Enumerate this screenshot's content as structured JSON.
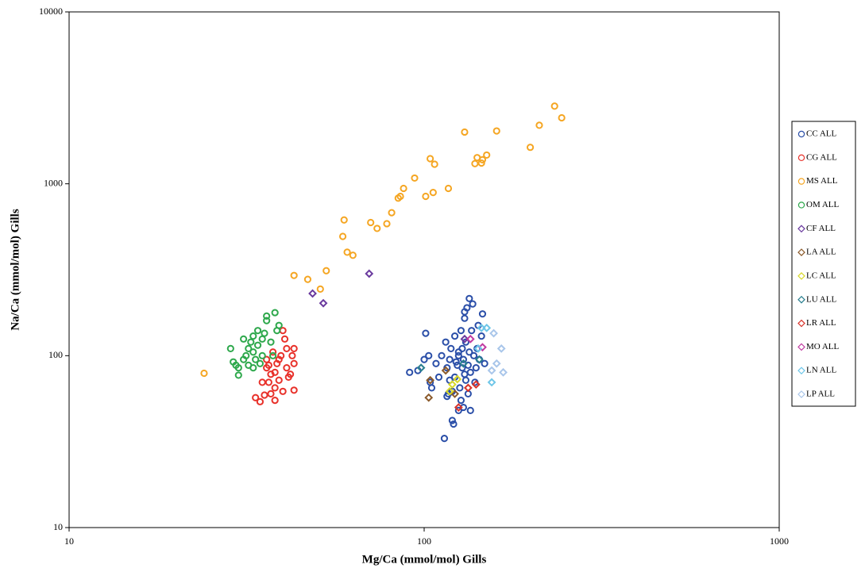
{
  "chart_data": {
    "type": "scatter",
    "xlabel": "Mg/Ca (mmol/mol) Gills",
    "ylabel": "Na/Ca (mmol/mol) Gills",
    "xscale": "log",
    "yscale": "log",
    "xlim": [
      10,
      1000
    ],
    "ylim": [
      10,
      10000
    ],
    "xticks": [
      10,
      100,
      1000
    ],
    "yticks": [
      10,
      100,
      1000,
      10000
    ],
    "grid": false,
    "legend": "right",
    "series": [
      {
        "name": "CC ALL",
        "color": "#2b4fa8",
        "marker": "circle",
        "x": [
          91,
          96,
          100,
          101,
          103,
          104,
          105,
          108,
          110,
          112,
          114,
          115,
          116,
          117,
          118,
          119,
          120,
          121,
          122,
          122,
          123,
          124,
          125,
          125,
          126,
          127,
          127,
          128,
          129,
          129,
          130,
          130,
          131,
          131,
          132,
          133,
          133,
          134,
          134,
          135,
          135,
          136,
          137,
          138,
          139,
          140,
          141,
          142,
          143,
          145,
          146,
          148,
          120,
          118,
          116,
          130,
          128,
          125
        ],
        "values": [
          80,
          82,
          95,
          135,
          100,
          70,
          65,
          90,
          75,
          100,
          33,
          120,
          85,
          60,
          95,
          110,
          42,
          40,
          75,
          130,
          92,
          88,
          100,
          48,
          65,
          55,
          140,
          110,
          95,
          50,
          165,
          78,
          120,
          72,
          190,
          88,
          60,
          105,
          215,
          48,
          80,
          140,
          200,
          100,
          70,
          85,
          110,
          150,
          95,
          130,
          175,
          90,
          62,
          72,
          58,
          180,
          85,
          105
        ]
      },
      {
        "name": "CG ALL",
        "color": "#e8312a",
        "marker": "circle",
        "x": [
          33.5,
          34.5,
          35,
          35.5,
          36,
          36,
          36.5,
          37,
          37,
          37.5,
          38,
          38,
          38.5,
          39,
          39,
          39.5,
          40,
          40,
          40.5,
          41,
          41,
          41.5,
          42,
          42.5,
          43,
          43,
          43,
          38,
          36.5
        ],
        "values": [
          57,
          54,
          70,
          59,
          85,
          95,
          70,
          60,
          78,
          105,
          80,
          65,
          90,
          95,
          72,
          100,
          62,
          140,
          125,
          110,
          85,
          75,
          78,
          100,
          110,
          90,
          63,
          55,
          88
        ]
      },
      {
        "name": "MS ALL",
        "color": "#f5a623",
        "marker": "circle",
        "x": [
          24,
          43,
          47,
          51,
          53,
          59,
          59.5,
          60.7,
          63,
          70.7,
          73.7,
          78.5,
          81,
          84.5,
          85.7,
          87.5,
          94,
          101,
          104,
          106,
          107,
          117,
          130,
          139,
          141,
          145,
          146,
          150,
          160,
          199,
          211,
          233,
          244
        ],
        "values": [
          79,
          293,
          278,
          244,
          312,
          494,
          616,
          400,
          384,
          595,
          550,
          586,
          679,
          825,
          845,
          940,
          1080,
          845,
          1400,
          890,
          1300,
          940,
          2000,
          1310,
          1420,
          1320,
          1380,
          1470,
          2030,
          1630,
          2190,
          2830,
          2420
        ]
      },
      {
        "name": "OM ALL",
        "color": "#2ea84c",
        "marker": "circle",
        "x": [
          28.5,
          29,
          29.5,
          30,
          30,
          31,
          31.5,
          32,
          32,
          32.5,
          33,
          33,
          33.5,
          34,
          34,
          34.5,
          35,
          35,
          35.5,
          36,
          36,
          37,
          37.5,
          38,
          38.5,
          39,
          31,
          33
        ],
        "values": [
          110,
          92,
          88,
          85,
          77,
          95,
          100,
          110,
          88,
          120,
          130,
          105,
          95,
          140,
          115,
          90,
          125,
          100,
          135,
          170,
          160,
          120,
          100,
          178,
          140,
          150,
          125,
          85
        ]
      },
      {
        "name": "CF ALL",
        "color": "#6a3a9e",
        "marker": "diamond",
        "x": [
          48.5,
          52,
          70,
          130
        ],
        "values": [
          230,
          202,
          300,
          125
        ]
      },
      {
        "name": "LA ALL",
        "color": "#8b5a2b",
        "marker": "diamond",
        "x": [
          103,
          104,
          115,
          122
        ],
        "values": [
          57,
          72,
          82,
          60
        ]
      },
      {
        "name": "LC ALL",
        "color": "#d8d82a",
        "marker": "diamond",
        "x": [
          118,
          120,
          124
        ],
        "values": [
          62,
          68,
          73
        ]
      },
      {
        "name": "LU ALL",
        "color": "#2a7f8f",
        "marker": "diamond",
        "x": [
          98,
          129,
          143
        ],
        "values": [
          85,
          90,
          95
        ]
      },
      {
        "name": "LR ALL",
        "color": "#d9342b",
        "marker": "diamond",
        "x": [
          125,
          133,
          140
        ],
        "values": [
          50,
          65,
          68
        ]
      },
      {
        "name": "MO ALL",
        "color": "#c03aa0",
        "marker": "diamond",
        "x": [
          135,
          146
        ],
        "values": [
          125,
          112
        ]
      },
      {
        "name": "LN ALL",
        "color": "#6ec6e8",
        "marker": "diamond",
        "x": [
          142,
          145,
          150,
          155
        ],
        "values": [
          110,
          145,
          145,
          70
        ]
      },
      {
        "name": "LP ALL",
        "color": "#a9c6ea",
        "marker": "diamond",
        "x": [
          155,
          157,
          160,
          165,
          167
        ],
        "values": [
          82,
          135,
          90,
          110,
          80
        ]
      }
    ]
  }
}
